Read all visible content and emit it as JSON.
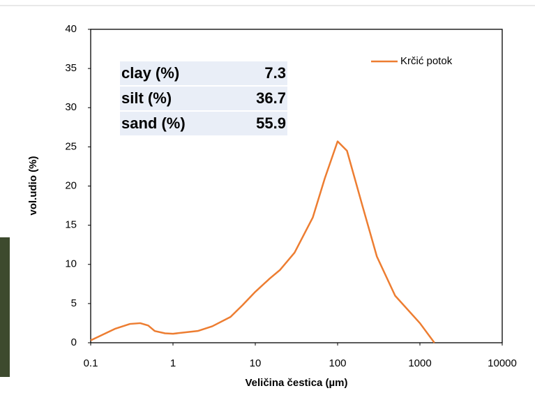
{
  "chart_data": {
    "type": "line",
    "xlabel": "Veličina čestica (µm)",
    "ylabel": "vol.udio (%)",
    "x": [
      0.1,
      0.2,
      0.3,
      0.4,
      0.5,
      0.6,
      0.8,
      1,
      2,
      3,
      5,
      7,
      10,
      15,
      20,
      30,
      50,
      70,
      100,
      130,
      200,
      300,
      500,
      1000,
      1500
    ],
    "series": [
      {
        "name": "Krčić potok",
        "color": "#ed7d31",
        "values": [
          0.3,
          1.8,
          2.4,
          2.5,
          2.2,
          1.5,
          1.2,
          1.15,
          1.5,
          2.1,
          3.3,
          4.8,
          6.5,
          8.2,
          9.3,
          11.5,
          16,
          21,
          25.7,
          24.5,
          17.5,
          11,
          6,
          2.5,
          0
        ]
      }
    ],
    "xscale": "log",
    "xlim": [
      0.1,
      10000
    ],
    "xticks": [
      0.1,
      1,
      10,
      100,
      1000,
      10000
    ],
    "ylim": [
      0,
      40
    ],
    "yticks": [
      0,
      5,
      10,
      15,
      20,
      25,
      30,
      35,
      40
    ],
    "grid": false,
    "legend": "upper right",
    "stats": [
      {
        "label": "clay (%)",
        "value": 7.3
      },
      {
        "label": "silt (%)",
        "value": 36.7
      },
      {
        "label": "sand (%)",
        "value": 55.9
      }
    ]
  }
}
